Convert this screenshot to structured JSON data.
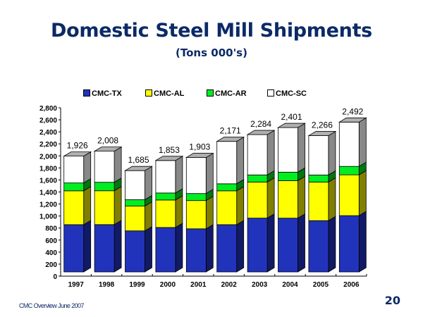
{
  "slide": {
    "footer": "CMC Overview  June 2007",
    "page_number": "20"
  },
  "chart_data": {
    "type": "bar",
    "stacked": true,
    "style": "3d-stacked-column",
    "title": "Domestic Steel Mill Shipments",
    "subtitle": "(Tons 000's)",
    "xlabel": "",
    "ylabel": "",
    "ylim": [
      0,
      2800
    ],
    "yticks": [
      0,
      200,
      400,
      600,
      800,
      1000,
      1200,
      1400,
      1600,
      1800,
      2000,
      2200,
      2400,
      2600,
      2800
    ],
    "ytick_labels": [
      "0",
      "200",
      "400",
      "600",
      "800",
      "1,000",
      "1,200",
      "1,400",
      "1,600",
      "1,800",
      "2,000",
      "2,200",
      "2,400",
      "2,600",
      "2,800"
    ],
    "grid": false,
    "legend_position": "top",
    "categories": [
      "1997",
      "1998",
      "1999",
      "2000",
      "2001",
      "2002",
      "2003",
      "2004",
      "2005",
      "2006"
    ],
    "series": [
      {
        "name": "CMC-TX",
        "color": "#2233bb",
        "side_color": "#111a66",
        "values": [
          786,
          787,
          683,
          739,
          717,
          786,
          895,
          894,
          853,
          936
        ]
      },
      {
        "name": "CMC-AL",
        "color": "#ffff00",
        "side_color": "#807f00",
        "values": [
          563,
          563,
          412,
          457,
          470,
          563,
          600,
          624,
          642,
          679
        ]
      },
      {
        "name": "CMC-AR",
        "color": "#00ee22",
        "side_color": "#007711",
        "values": [
          131,
          141,
          106,
          117,
          117,
          117,
          118,
          141,
          117,
          140
        ]
      },
      {
        "name": "CMC-SC",
        "color": "#ffffff",
        "side_color": "#888888",
        "values": [
          446,
          517,
          484,
          540,
          599,
          705,
          671,
          742,
          654,
          737
        ]
      }
    ],
    "totals": [
      1926,
      2008,
      1685,
      1853,
      1903,
      2171,
      2284,
      2401,
      2266,
      2492
    ],
    "total_labels": [
      "1,926",
      "2,008",
      "1,685",
      "1,853",
      "1,903",
      "2,171",
      "2,284",
      "2,401",
      "2,266",
      "2,492"
    ]
  }
}
